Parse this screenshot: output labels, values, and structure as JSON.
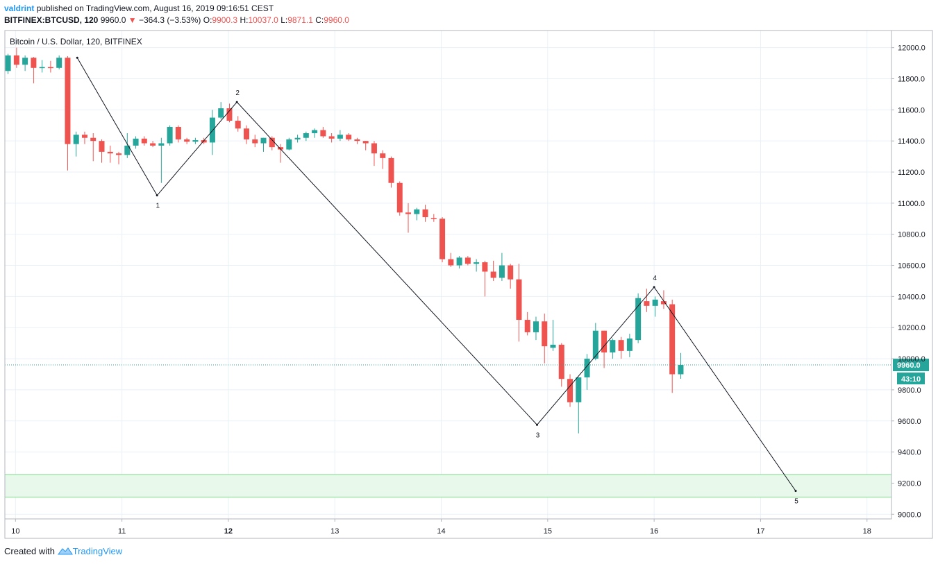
{
  "header": {
    "author": "valdrint",
    "published_text": "published on TradingView.com, August 16, 2019 09:16:51 CEST",
    "symbol_line": "BITFINEX:BTCUSD, 120",
    "last": "9960.0",
    "change": "−364.3 (−3.53%)",
    "open_label": "O:",
    "open": "9900.3",
    "high_label": "H:",
    "high": "10037.0",
    "low_label": "L:",
    "low": "9871.1",
    "close_label": "C:",
    "close": "9960.0"
  },
  "footer": {
    "created_with": "Created with",
    "brand": "TradingView"
  },
  "colors": {
    "up": "#26a69a",
    "down": "#ef5350",
    "grid": "#e9f1f7",
    "zone_fill": "#e8f8ea",
    "zone_line": "#7fd88a",
    "price_line": "#26a69a"
  },
  "chart_data": {
    "type": "candlestick",
    "title": "Bitcoin / U.S. Dollar, 120, BITFINEX",
    "x_ticks": [
      {
        "label": "10",
        "day": 10
      },
      {
        "label": "11",
        "day": 11
      },
      {
        "label": "12",
        "day": 12
      },
      {
        "label": "13",
        "day": 13
      },
      {
        "label": "14",
        "day": 14
      },
      {
        "label": "15",
        "day": 15
      },
      {
        "label": "16",
        "day": 16
      },
      {
        "label": "17",
        "day": 17
      },
      {
        "label": "18",
        "day": 18
      }
    ],
    "xlim": [
      9.9,
      18.23
    ],
    "ylim": [
      8970,
      12110
    ],
    "y_ticks": [
      9000,
      9200,
      9400,
      9600,
      9800,
      10000,
      10200,
      10400,
      10600,
      10800,
      11000,
      11200,
      11400,
      11600,
      11800,
      12000
    ],
    "y_tick_labels": [
      "9000.0",
      "9200.0",
      "9400.0",
      "9600.0",
      "9800.0",
      "10000.0",
      "10200.0",
      "10400.0",
      "10600.0",
      "10800.0",
      "11000.0",
      "11200.0",
      "11400.0",
      "11600.0",
      "11800.0",
      "12000.0"
    ],
    "current_price": 9960.0,
    "current_price_label": "9960.0",
    "countdown_label": "43:10",
    "support_zone": [
      9110,
      9255
    ],
    "wave_points": [
      {
        "label": "",
        "day": 10.58,
        "price": 11935
      },
      {
        "label": "1",
        "day": 11.33,
        "price": 11050
      },
      {
        "label": "2",
        "day": 12.08,
        "price": 11650
      },
      {
        "label": "3",
        "day": 14.9,
        "price": 9575
      },
      {
        "label": "4",
        "day": 16.0,
        "price": 10460
      },
      {
        "label": "5",
        "day": 17.33,
        "price": 9150
      }
    ],
    "candles": [
      {
        "day": 9.93,
        "o": 11850,
        "h": 11960,
        "l": 11830,
        "c": 11950
      },
      {
        "day": 10.01,
        "o": 11950,
        "h": 12000,
        "l": 11870,
        "c": 11890
      },
      {
        "day": 10.09,
        "o": 11890,
        "h": 11950,
        "l": 11850,
        "c": 11935
      },
      {
        "day": 10.17,
        "o": 11935,
        "h": 11940,
        "l": 11770,
        "c": 11870
      },
      {
        "day": 10.25,
        "o": 11870,
        "h": 11920,
        "l": 11840,
        "c": 11875
      },
      {
        "day": 10.33,
        "o": 11875,
        "h": 11915,
        "l": 11840,
        "c": 11870
      },
      {
        "day": 10.41,
        "o": 11870,
        "h": 11950,
        "l": 11860,
        "c": 11935
      },
      {
        "day": 10.49,
        "o": 11935,
        "h": 11945,
        "l": 11210,
        "c": 11380
      },
      {
        "day": 10.57,
        "o": 11380,
        "h": 11460,
        "l": 11300,
        "c": 11440
      },
      {
        "day": 10.65,
        "o": 11440,
        "h": 11460,
        "l": 11380,
        "c": 11420
      },
      {
        "day": 10.73,
        "o": 11420,
        "h": 11450,
        "l": 11270,
        "c": 11400
      },
      {
        "day": 10.81,
        "o": 11400,
        "h": 11410,
        "l": 11260,
        "c": 11330
      },
      {
        "day": 10.89,
        "o": 11330,
        "h": 11370,
        "l": 11260,
        "c": 11320
      },
      {
        "day": 10.97,
        "o": 11320,
        "h": 11330,
        "l": 11250,
        "c": 11310
      },
      {
        "day": 11.05,
        "o": 11310,
        "h": 11450,
        "l": 11290,
        "c": 11370
      },
      {
        "day": 11.13,
        "o": 11370,
        "h": 11430,
        "l": 11350,
        "c": 11415
      },
      {
        "day": 11.21,
        "o": 11415,
        "h": 11430,
        "l": 11370,
        "c": 11385
      },
      {
        "day": 11.29,
        "o": 11385,
        "h": 11400,
        "l": 11360,
        "c": 11370
      },
      {
        "day": 11.37,
        "o": 11370,
        "h": 11420,
        "l": 11130,
        "c": 11385
      },
      {
        "day": 11.45,
        "o": 11385,
        "h": 11500,
        "l": 11370,
        "c": 11490
      },
      {
        "day": 11.53,
        "o": 11490,
        "h": 11500,
        "l": 11390,
        "c": 11410
      },
      {
        "day": 11.61,
        "o": 11410,
        "h": 11420,
        "l": 11380,
        "c": 11395
      },
      {
        "day": 11.69,
        "o": 11395,
        "h": 11420,
        "l": 11380,
        "c": 11405
      },
      {
        "day": 11.77,
        "o": 11405,
        "h": 11420,
        "l": 11380,
        "c": 11390
      },
      {
        "day": 11.85,
        "o": 11390,
        "h": 11600,
        "l": 11310,
        "c": 11550
      },
      {
        "day": 11.93,
        "o": 11550,
        "h": 11650,
        "l": 11540,
        "c": 11610
      },
      {
        "day": 12.01,
        "o": 11610,
        "h": 11640,
        "l": 11520,
        "c": 11530
      },
      {
        "day": 12.09,
        "o": 11530,
        "h": 11560,
        "l": 11460,
        "c": 11480
      },
      {
        "day": 12.17,
        "o": 11480,
        "h": 11500,
        "l": 11380,
        "c": 11410
      },
      {
        "day": 12.25,
        "o": 11410,
        "h": 11440,
        "l": 11360,
        "c": 11385
      },
      {
        "day": 12.33,
        "o": 11385,
        "h": 11420,
        "l": 11330,
        "c": 11420
      },
      {
        "day": 12.41,
        "o": 11420,
        "h": 11430,
        "l": 11340,
        "c": 11360
      },
      {
        "day": 12.49,
        "o": 11360,
        "h": 11380,
        "l": 11260,
        "c": 11345
      },
      {
        "day": 12.57,
        "o": 11345,
        "h": 11420,
        "l": 11340,
        "c": 11410
      },
      {
        "day": 12.65,
        "o": 11410,
        "h": 11440,
        "l": 11390,
        "c": 11420
      },
      {
        "day": 12.73,
        "o": 11420,
        "h": 11460,
        "l": 11400,
        "c": 11450
      },
      {
        "day": 12.81,
        "o": 11450,
        "h": 11480,
        "l": 11420,
        "c": 11470
      },
      {
        "day": 12.89,
        "o": 11470,
        "h": 11490,
        "l": 11420,
        "c": 11430
      },
      {
        "day": 12.97,
        "o": 11430,
        "h": 11450,
        "l": 11390,
        "c": 11415
      },
      {
        "day": 13.05,
        "o": 11415,
        "h": 11470,
        "l": 11400,
        "c": 11440
      },
      {
        "day": 13.13,
        "o": 11440,
        "h": 11450,
        "l": 11400,
        "c": 11410
      },
      {
        "day": 13.21,
        "o": 11410,
        "h": 11420,
        "l": 11380,
        "c": 11400
      },
      {
        "day": 13.29,
        "o": 11400,
        "h": 11400,
        "l": 11340,
        "c": 11385
      },
      {
        "day": 13.37,
        "o": 11385,
        "h": 11400,
        "l": 11240,
        "c": 11320
      },
      {
        "day": 13.45,
        "o": 11320,
        "h": 11340,
        "l": 11220,
        "c": 11290
      },
      {
        "day": 13.53,
        "o": 11290,
        "h": 11300,
        "l": 11100,
        "c": 11130
      },
      {
        "day": 13.61,
        "o": 11130,
        "h": 11140,
        "l": 10920,
        "c": 10940
      },
      {
        "day": 13.69,
        "o": 10940,
        "h": 11000,
        "l": 10810,
        "c": 10930
      },
      {
        "day": 13.77,
        "o": 10930,
        "h": 10970,
        "l": 10890,
        "c": 10960
      },
      {
        "day": 13.85,
        "o": 10960,
        "h": 10990,
        "l": 10880,
        "c": 10910
      },
      {
        "day": 13.93,
        "o": 10905,
        "h": 10930,
        "l": 10880,
        "c": 10900
      },
      {
        "day": 14.01,
        "o": 10900,
        "h": 10910,
        "l": 10620,
        "c": 10640
      },
      {
        "day": 14.09,
        "o": 10640,
        "h": 10680,
        "l": 10590,
        "c": 10600
      },
      {
        "day": 14.17,
        "o": 10600,
        "h": 10660,
        "l": 10580,
        "c": 10650
      },
      {
        "day": 14.25,
        "o": 10650,
        "h": 10660,
        "l": 10600,
        "c": 10610
      },
      {
        "day": 14.33,
        "o": 10610,
        "h": 10640,
        "l": 10560,
        "c": 10620
      },
      {
        "day": 14.41,
        "o": 10620,
        "h": 10630,
        "l": 10400,
        "c": 10560
      },
      {
        "day": 14.49,
        "o": 10560,
        "h": 10630,
        "l": 10500,
        "c": 10520
      },
      {
        "day": 14.57,
        "o": 10520,
        "h": 10680,
        "l": 10500,
        "c": 10600
      },
      {
        "day": 14.65,
        "o": 10600,
        "h": 10610,
        "l": 10450,
        "c": 10510
      },
      {
        "day": 14.73,
        "o": 10510,
        "h": 10610,
        "l": 10110,
        "c": 10250
      },
      {
        "day": 14.81,
        "o": 10250,
        "h": 10300,
        "l": 10150,
        "c": 10170
      },
      {
        "day": 14.89,
        "o": 10170,
        "h": 10270,
        "l": 10120,
        "c": 10240
      },
      {
        "day": 14.97,
        "o": 10240,
        "h": 10290,
        "l": 9970,
        "c": 10080
      },
      {
        "day": 15.05,
        "o": 10070,
        "h": 10250,
        "l": 10050,
        "c": 10090
      },
      {
        "day": 15.13,
        "o": 10090,
        "h": 10100,
        "l": 9820,
        "c": 9870
      },
      {
        "day": 15.21,
        "o": 9870,
        "h": 9900,
        "l": 9690,
        "c": 9720
      },
      {
        "day": 15.29,
        "o": 9720,
        "h": 9870,
        "l": 9520,
        "c": 9880
      },
      {
        "day": 15.37,
        "o": 9880,
        "h": 10030,
        "l": 9800,
        "c": 10000
      },
      {
        "day": 15.45,
        "o": 10000,
        "h": 10230,
        "l": 9990,
        "c": 10180
      },
      {
        "day": 15.53,
        "o": 10180,
        "h": 10180,
        "l": 9940,
        "c": 10040
      },
      {
        "day": 15.61,
        "o": 10040,
        "h": 10130,
        "l": 10000,
        "c": 10120
      },
      {
        "day": 15.69,
        "o": 10120,
        "h": 10140,
        "l": 10000,
        "c": 10050
      },
      {
        "day": 15.77,
        "o": 10050,
        "h": 10160,
        "l": 10010,
        "c": 10130
      },
      {
        "day": 15.85,
        "o": 10120,
        "h": 10420,
        "l": 10100,
        "c": 10390
      },
      {
        "day": 15.93,
        "o": 10370,
        "h": 10450,
        "l": 10300,
        "c": 10340
      },
      {
        "day": 16.01,
        "o": 10340,
        "h": 10400,
        "l": 10270,
        "c": 10380
      },
      {
        "day": 16.09,
        "o": 10370,
        "h": 10440,
        "l": 10320,
        "c": 10350
      },
      {
        "day": 16.17,
        "o": 10350,
        "h": 10380,
        "l": 9780,
        "c": 9900
      },
      {
        "day": 16.25,
        "o": 9900,
        "h": 10037,
        "l": 9871,
        "c": 9960
      }
    ]
  }
}
